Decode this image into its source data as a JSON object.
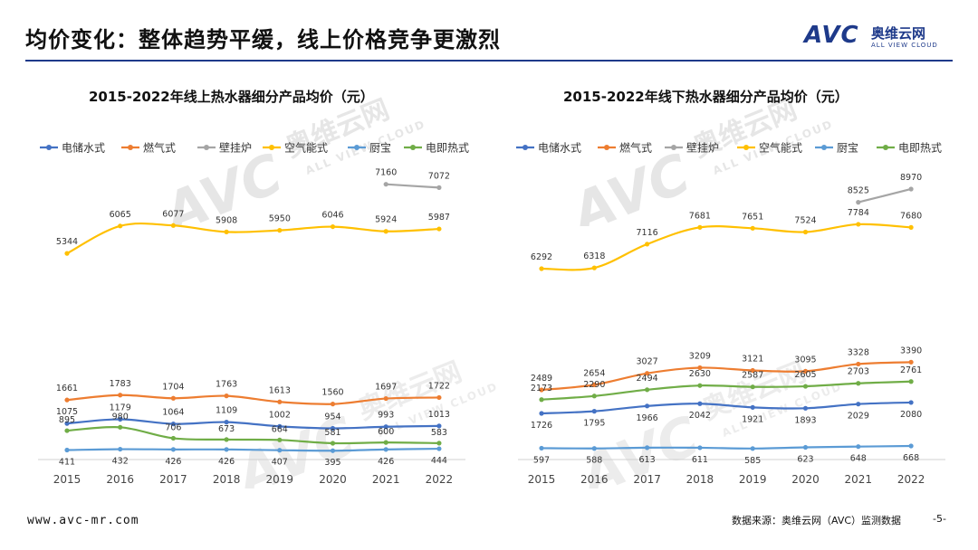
{
  "header": {
    "title": "均价变化：整体趋势平缓，线上价格竞争更激烈",
    "logo_brand": "AVC",
    "logo_cn": "奥维云网",
    "logo_en": "ALL VIEW CLOUD"
  },
  "footer": {
    "url": "www.avc-mr.com",
    "source": "数据来源：奥维云网（AVC）监测数据",
    "page": "-5-"
  },
  "chart_data": [
    {
      "type": "line",
      "title": "2015-2022年线上热水器细分产品均价（元）",
      "categories": [
        "2015",
        "2016",
        "2017",
        "2018",
        "2019",
        "2020",
        "2021",
        "2022"
      ],
      "series": [
        {
          "name": "电储水式",
          "color": "#4472c4",
          "values": [
            1075,
            1179,
            1064,
            1109,
            1002,
            954,
            993,
            1013
          ]
        },
        {
          "name": "燃气式",
          "color": "#ed7d31",
          "values": [
            1661,
            1783,
            1704,
            1763,
            1613,
            1560,
            1697,
            1722
          ]
        },
        {
          "name": "壁挂炉",
          "color": "#a5a5a5",
          "values": [
            null,
            null,
            null,
            null,
            null,
            null,
            7160,
            7072
          ]
        },
        {
          "name": "空气能式",
          "color": "#ffc000",
          "values": [
            5344,
            6065,
            6077,
            5908,
            5950,
            6046,
            5924,
            5987
          ]
        },
        {
          "name": "厨宝",
          "color": "#5b9bd5",
          "values": [
            411,
            432,
            426,
            426,
            407,
            395,
            426,
            444
          ]
        },
        {
          "name": "电即热式",
          "color": "#70ad47",
          "values": [
            895,
            980,
            706,
            673,
            664,
            581,
            600,
            583
          ]
        }
      ]
    },
    {
      "type": "line",
      "title": "2015-2022年线下热水器细分产品均价（元）",
      "categories": [
        "2015",
        "2016",
        "2017",
        "2018",
        "2019",
        "2020",
        "2021",
        "2022"
      ],
      "series": [
        {
          "name": "电储水式",
          "color": "#4472c4",
          "values": [
            1726,
            1795,
            1966,
            2042,
            1921,
            1893,
            2029,
            2080
          ]
        },
        {
          "name": "燃气式",
          "color": "#ed7d31",
          "values": [
            2489,
            2654,
            3027,
            3209,
            3121,
            3095,
            3328,
            3390
          ]
        },
        {
          "name": "壁挂炉",
          "color": "#a5a5a5",
          "values": [
            null,
            null,
            null,
            null,
            null,
            null,
            8525,
            8970
          ]
        },
        {
          "name": "空气能式",
          "color": "#ffc000",
          "values": [
            6292,
            6318,
            7116,
            7681,
            7651,
            7524,
            7784,
            7680
          ]
        },
        {
          "name": "厨宝",
          "color": "#5b9bd5",
          "values": [
            597,
            588,
            613,
            611,
            585,
            623,
            648,
            668
          ]
        },
        {
          "name": "电即热式",
          "color": "#70ad47",
          "values": [
            2173,
            2290,
            2494,
            2630,
            2587,
            2605,
            2703,
            2761
          ]
        }
      ]
    }
  ]
}
